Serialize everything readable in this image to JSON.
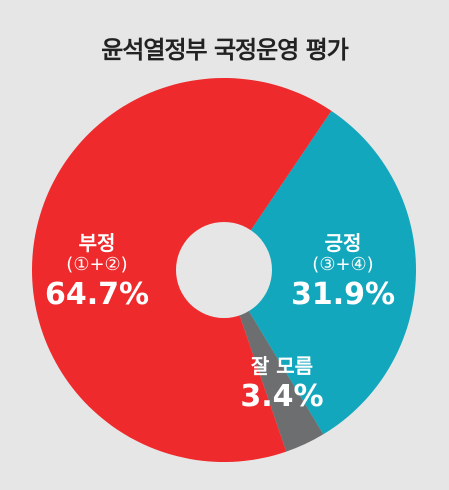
{
  "title": "윤석열정부 국정운영 평가",
  "chart_data": {
    "type": "pie",
    "title": "윤석열정부 국정운영 평가",
    "slices": [
      {
        "label": "긍정",
        "sublabel": "(③+④)",
        "value": 31.9,
        "display": "31.9%",
        "color": "#12a7bd"
      },
      {
        "label": "잘 모름",
        "sublabel": "",
        "value": 3.4,
        "display": "3.4%",
        "color": "#6d6e70"
      },
      {
        "label": "부정",
        "sublabel": "(①+②)",
        "value": 64.7,
        "display": "64.7%",
        "color": "#ee2a2c"
      }
    ],
    "donut_hole": true,
    "start_angle_deg": 34
  }
}
